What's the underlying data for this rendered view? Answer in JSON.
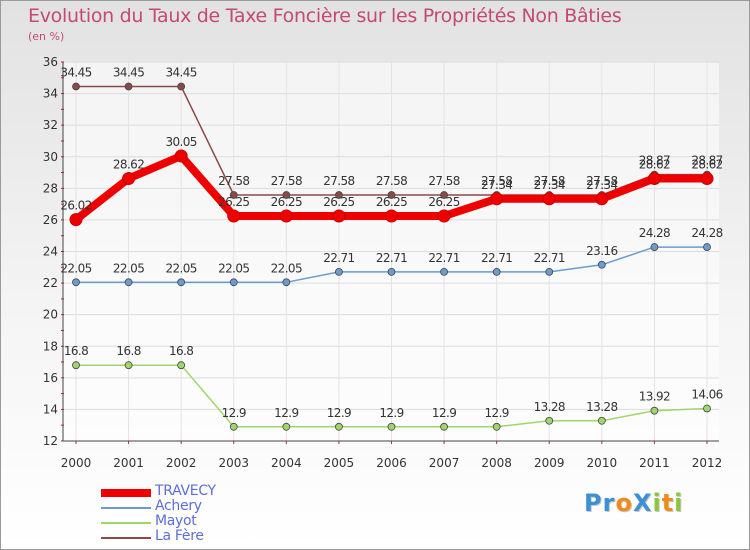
{
  "title": "Evolution du Taux de Taxe Foncière sur les Propriétés Non Bâties",
  "subtitle": "(en %)",
  "logo": {
    "letters": [
      {
        "char": "P",
        "color": "#3d8fd6"
      },
      {
        "char": "r",
        "color": "#3d8fd6"
      },
      {
        "char": "o",
        "color": "#f08a1c"
      },
      {
        "char": "X",
        "color": "#3d8fd6"
      },
      {
        "char": "i",
        "color": "#8cc63f"
      },
      {
        "char": "t",
        "color": "#f08a1c"
      },
      {
        "char": "i",
        "color": "#8cc63f"
      }
    ]
  },
  "chart_data": {
    "type": "line",
    "x": [
      "2000",
      "2001",
      "2002",
      "2003",
      "2004",
      "2005",
      "2006",
      "2007",
      "2008",
      "2009",
      "2010",
      "2011",
      "2012"
    ],
    "ylim": [
      12,
      36
    ],
    "yticks": [
      "12",
      "14",
      "16",
      "18",
      "20",
      "22",
      "24",
      "26",
      "28",
      "30",
      "32",
      "34",
      "36"
    ],
    "grid": true,
    "legend_position": "bottom-left",
    "series": [
      {
        "name": "TRAVECY",
        "color": "#ee0000",
        "emphasis": true,
        "values": [
          26.02,
          28.62,
          30.05,
          26.25,
          26.25,
          26.25,
          26.25,
          26.25,
          27.34,
          27.34,
          27.34,
          28.62,
          28.62
        ],
        "labels": [
          "26.02",
          "28.62",
          "30.05",
          "26.25",
          "26.25",
          "26.25",
          "26.25",
          "26.25",
          "27.34",
          "27.34",
          "27.34",
          "28.62",
          "28.62"
        ]
      },
      {
        "name": "Achery",
        "color": "#6a9ccf",
        "emphasis": false,
        "values": [
          22.05,
          22.05,
          22.05,
          22.05,
          22.05,
          22.71,
          22.71,
          22.71,
          22.71,
          22.71,
          23.16,
          24.28,
          24.28
        ],
        "labels": [
          "22.05",
          "22.05",
          "22.05",
          "22.05",
          "22.05",
          "22.71",
          "22.71",
          "22.71",
          "22.71",
          "22.71",
          "23.16",
          "24.28",
          "24.28"
        ]
      },
      {
        "name": "Mayot",
        "color": "#9fd66a",
        "emphasis": false,
        "values": [
          16.8,
          16.8,
          16.8,
          12.9,
          12.9,
          12.9,
          12.9,
          12.9,
          12.9,
          13.28,
          13.28,
          13.92,
          14.06
        ],
        "labels": [
          "16.8",
          "16.8",
          "16.8",
          "12.9",
          "12.9",
          "12.9",
          "12.9",
          "12.9",
          "12.9",
          "13.28",
          "13.28",
          "13.92",
          "14.06"
        ]
      },
      {
        "name": "La Fère",
        "color": "#8a4a4a",
        "emphasis": false,
        "values": [
          34.45,
          34.45,
          34.45,
          27.58,
          27.58,
          27.58,
          27.58,
          27.58,
          27.58,
          27.58,
          27.58,
          28.87,
          28.87
        ],
        "labels": [
          "34.45",
          "34.45",
          "34.45",
          "27.58",
          "27.58",
          "27.58",
          "27.58",
          "27.58",
          "27.58",
          "27.58",
          "27.58",
          "28.87",
          "28.87"
        ]
      }
    ]
  }
}
